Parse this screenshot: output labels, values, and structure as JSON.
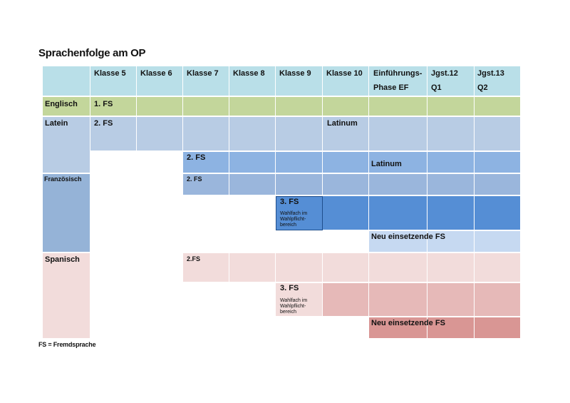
{
  "title": "Sprachenfolge am OP",
  "header": {
    "k5": "Klasse 5",
    "k6": "Klasse 6",
    "k7": "Klasse 7",
    "k8": "Klasse 8",
    "k9": "Klasse 9",
    "k10": "Klasse 10",
    "ef_line1": "Einführungs-",
    "ef_line2": "Phase   EF",
    "q1_line1": "Jgst.12",
    "q1_line2": "Q1",
    "q2_line1": "Jgst.13",
    "q2_line2": "Q2"
  },
  "rows": {
    "englisch": "Englisch",
    "latein": "Latein",
    "franzoesisch": "Französisch",
    "spanisch": "Spanisch"
  },
  "labels": {
    "fs1": "1. FS",
    "fs2_latein": "2. FS",
    "latinum_top": "Latinum",
    "fs2_row2": "2. FS",
    "latinum_mid": "Latinum",
    "fs2_franz": "2. FS",
    "fs3_franz": "3. FS",
    "wahlfach_franz": "Wahlfach im Wahlpflicht-bereich",
    "neu_fs_blue": "Neu einsetzende FS",
    "fs2_span": "2.FS",
    "fs3_span": "3. FS",
    "wahlfach_span": "Wahlfach im Wahlpflicht-bereich",
    "neu_fs_red": "Neu einsetzende FS"
  },
  "footnote": "FS = Fremdsprache",
  "colors": {
    "header": "#b9dfe8",
    "englisch": "#c3d69b",
    "latein_row": "#b8cce4",
    "blue_mid": "#8db3e2",
    "franz_label": "#95b3d7",
    "franz_row": "#9ab6dc",
    "fs3_blue": "#558ed5",
    "neu_blue": "#c6d9f1",
    "span_light": "#f2dcdb",
    "span_mid": "#e6b9b8",
    "span_dark": "#d99694"
  }
}
